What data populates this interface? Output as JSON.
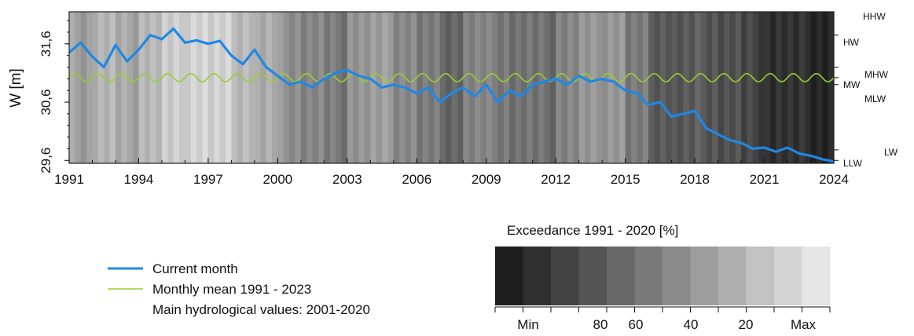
{
  "chart_data": {
    "type": "line",
    "ylabel": "W [m]",
    "x_range": [
      1991,
      2024
    ],
    "ylim": [
      29.55,
      32.15
    ],
    "x_ticks": [
      "1991",
      "1994",
      "1997",
      "2000",
      "2003",
      "2006",
      "2009",
      "2012",
      "2015",
      "2018",
      "2021",
      "2024"
    ],
    "y_ticks": [
      "29,6",
      "30,6",
      "31,6"
    ],
    "y_tick_values": [
      29.6,
      30.6,
      31.6
    ],
    "reference_levels": [
      {
        "label": "HHW",
        "value": 32.35
      },
      {
        "label": "HW",
        "value": 31.75
      },
      {
        "label": "MHW",
        "value": 31.2
      },
      {
        "label": "MW",
        "value": 31.02
      },
      {
        "label": "MLW",
        "value": 30.9
      },
      {
        "label": "LW",
        "value": 29.78
      },
      {
        "label": "LLW",
        "value": 29.6
      }
    ],
    "background_shading": {
      "description": "monthly exceedance 1991-2020 [%]",
      "years": [
        1991,
        1992,
        1993,
        1994,
        1995,
        1996,
        1997,
        1998,
        1999,
        2000,
        2001,
        2002,
        2003,
        2004,
        2005,
        2006,
        2007,
        2008,
        2009,
        2010,
        2011,
        2012,
        2013,
        2014,
        2015,
        2016,
        2017,
        2018,
        2019,
        2020,
        2021,
        2022,
        2023
      ],
      "exceedance_pct": [
        35,
        25,
        32,
        22,
        15,
        8,
        12,
        20,
        30,
        42,
        48,
        55,
        40,
        38,
        45,
        55,
        62,
        50,
        52,
        58,
        60,
        48,
        42,
        38,
        55,
        68,
        72,
        70,
        75,
        82,
        90,
        92,
        95
      ]
    },
    "series": [
      {
        "name": "Current month",
        "color": "#1e88e5",
        "x": [
          1991.0,
          1991.5,
          1992.0,
          1992.5,
          1993.0,
          1993.5,
          1994.0,
          1994.5,
          1995.0,
          1995.5,
          1996.0,
          1996.5,
          1997.0,
          1997.5,
          1998.0,
          1998.5,
          1999.0,
          1999.5,
          2000.0,
          2000.5,
          2001.0,
          2001.5,
          2002.0,
          2002.5,
          2003.0,
          2003.5,
          2004.0,
          2004.5,
          2005.0,
          2005.5,
          2006.0,
          2006.5,
          2007.0,
          2007.5,
          2008.0,
          2008.5,
          2009.0,
          2009.5,
          2010.0,
          2010.5,
          2011.0,
          2011.5,
          2012.0,
          2012.5,
          2013.0,
          2013.5,
          2014.0,
          2014.5,
          2015.0,
          2015.5,
          2016.0,
          2016.5,
          2017.0,
          2017.5,
          2018.0,
          2018.5,
          2019.0,
          2019.5,
          2020.0,
          2020.5,
          2021.0,
          2021.5,
          2022.0,
          2022.5,
          2023.0,
          2023.5,
          2024.0
        ],
        "values": [
          31.45,
          31.62,
          31.38,
          31.2,
          31.58,
          31.3,
          31.5,
          31.75,
          31.68,
          31.86,
          31.62,
          31.66,
          31.6,
          31.65,
          31.4,
          31.25,
          31.5,
          31.2,
          31.05,
          30.9,
          30.95,
          30.85,
          31.0,
          31.1,
          31.15,
          31.05,
          31.0,
          30.85,
          30.9,
          30.85,
          30.75,
          30.85,
          30.6,
          30.75,
          30.85,
          30.7,
          30.9,
          30.6,
          30.8,
          30.7,
          30.9,
          30.95,
          31.0,
          30.9,
          31.05,
          30.95,
          31.0,
          30.95,
          30.8,
          30.75,
          30.55,
          30.6,
          30.35,
          30.4,
          30.45,
          30.15,
          30.05,
          29.95,
          29.9,
          29.8,
          29.82,
          29.75,
          29.82,
          29.72,
          29.68,
          29.62,
          29.58
        ]
      },
      {
        "name": "Monthly mean 1991 - 2023",
        "color": "#9acd32",
        "periodic": {
          "mean": 31.02,
          "amplitude": 0.07,
          "period_years": 1
        }
      }
    ],
    "legend": {
      "entries": [
        "Current month",
        "Monthly mean 1991 - 2023",
        "Main hydrological values: 2001-2020"
      ],
      "placement": "bottom-left"
    },
    "colorbar": {
      "title": "Exceedance  1991 - 2020 [%]",
      "labels": [
        "Min",
        "80",
        "60",
        "40",
        "20",
        "Max"
      ],
      "steps": 12,
      "color_dark": "#1e1e1e",
      "color_light": "#e6e6e6"
    }
  }
}
